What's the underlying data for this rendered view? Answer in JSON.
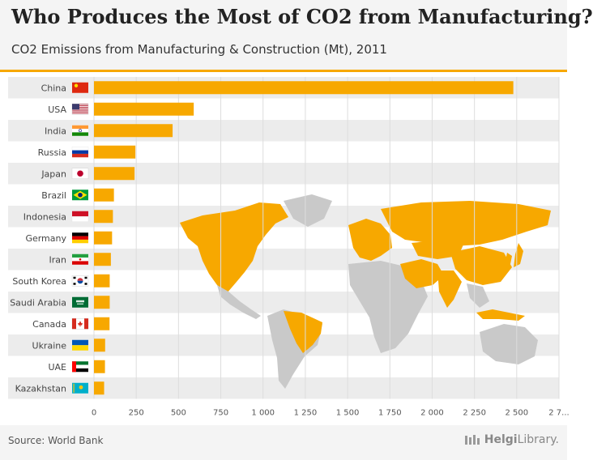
{
  "title": "Who Produces the Most of CO2 from Manufacturing?",
  "subtitle": "CO2 Emissions from Manufacturing & Construction (Mt), 2011",
  "source": "Source: World Bank",
  "brand_bold": "Helgi",
  "brand_rest": "Library.",
  "colors": {
    "bar": "#f7a800",
    "stripe": "#ececec",
    "map_gray": "#c9c9c9"
  },
  "chart_data": {
    "type": "bar",
    "orientation": "horizontal",
    "title": "Who Produces the Most of CO2 from Manufacturing?",
    "subtitle": "CO2 Emissions from Manufacturing & Construction (Mt), 2011",
    "categories": [
      "China",
      "USA",
      "India",
      "Russia",
      "Japan",
      "Brazil",
      "Indonesia",
      "Germany",
      "Iran",
      "South Korea",
      "Saudi Arabia",
      "Canada",
      "Ukraine",
      "UAE",
      "Kazakhstan"
    ],
    "values": [
      2480,
      590,
      465,
      245,
      240,
      118,
      112,
      107,
      100,
      93,
      93,
      92,
      66,
      65,
      60
    ],
    "xticks": [
      "0",
      "250",
      "500",
      "750",
      "1 000",
      "1 250",
      "1 500",
      "1 750",
      "2 000",
      "2 250",
      "2 500",
      "2 7..."
    ],
    "xlim": [
      0,
      2750
    ],
    "grid": true
  }
}
